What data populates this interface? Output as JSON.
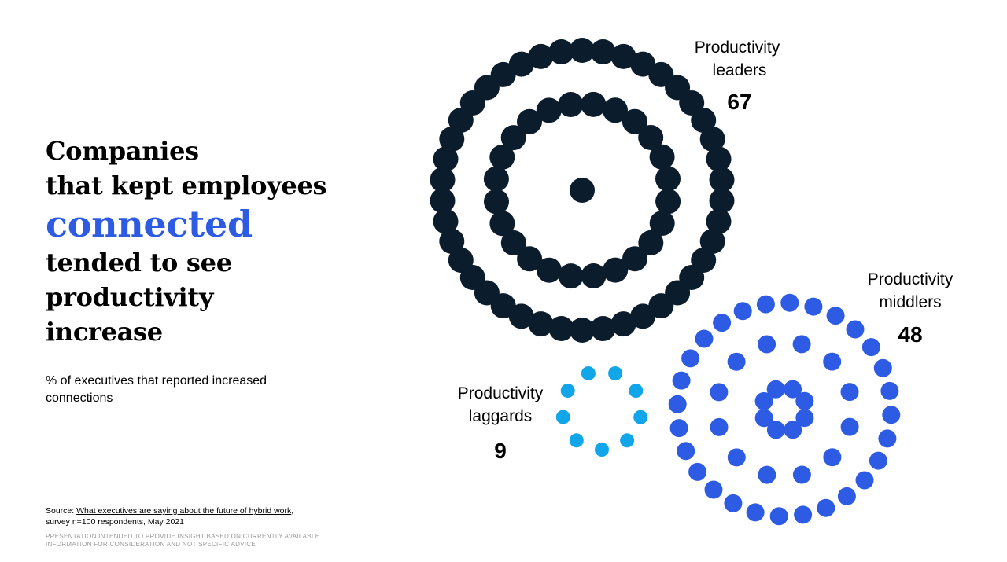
{
  "headline": {
    "line1": "Companies",
    "line2": "that kept employees",
    "accent": "connected",
    "line3": "tended to see",
    "line4": "productivity",
    "line5": "increase"
  },
  "subtitle": "% of executives that reported increased connections",
  "source": {
    "prefix": "Source: ",
    "link_text": "What executives are saying about the future of hybrid work",
    "suffix": ",",
    "line2": "survey n=100 respondents, May 2021"
  },
  "disclaimer": "PRESENTATION INTENDED TO PROVIDE INSIGHT BASED ON CURRENTLY AVAILABLE INFORMATION FOR CONSIDERATION AND NOT SPECIFIC ADVICE",
  "colors": {
    "accent": "#2d5be3",
    "leaders": "#0b1c2c",
    "middlers": "#2d5be3",
    "laggards": "#11a6ea"
  },
  "chart_data": {
    "type": "dot-cluster",
    "title": "% of executives that reported increased connections",
    "series": [
      {
        "name": "Productivity leaders",
        "label_line1": "Productivity",
        "label_line2": "leaders",
        "value": 67,
        "value_text": "67"
      },
      {
        "name": "Productivity middlers",
        "label_line1": "Productivity",
        "label_line2": "middlers",
        "value": 48,
        "value_text": "48"
      },
      {
        "name": "Productivity laggards",
        "label_line1": "Productivity",
        "label_line2": "laggards",
        "value": 9,
        "value_text": "9"
      }
    ]
  }
}
